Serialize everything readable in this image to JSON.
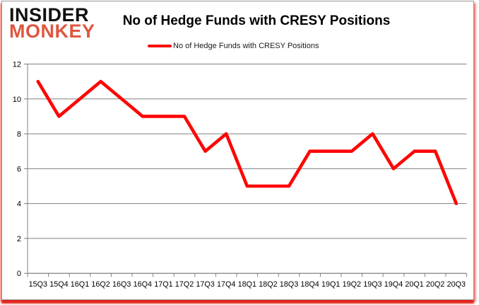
{
  "window": {
    "background": "#ffffff",
    "border_color": "#959595",
    "shadow_side_color": "#f2998f",
    "shadow_bottom_color": "#e01c12"
  },
  "logo": {
    "line1": "INSIDER",
    "line2": "MONKEY",
    "line1_color": "#111111",
    "line2_color": "#de5740"
  },
  "header": {
    "title": "No of Hedge Funds with CRESY Positions"
  },
  "legend": {
    "label": "No of Hedge Funds with CRESY Positions",
    "line_color": "#fe0606"
  },
  "chart_data": {
    "type": "line",
    "title": "No of Hedge Funds with CRESY Positions",
    "categories": [
      "15Q3",
      "15Q4",
      "16Q1",
      "16Q2",
      "16Q3",
      "16Q4",
      "17Q1",
      "17Q2",
      "17Q3",
      "17Q4",
      "18Q1",
      "18Q2",
      "18Q3",
      "18Q4",
      "19Q1",
      "19Q2",
      "19Q3",
      "19Q4",
      "20Q1",
      "20Q2",
      "20Q3"
    ],
    "series": [
      {
        "name": "No of Hedge Funds with CRESY Positions",
        "color": "#fe0606",
        "values": [
          11,
          9,
          10,
          11,
          10,
          9,
          9,
          9,
          7,
          8,
          5,
          5,
          5,
          7,
          7,
          7,
          8,
          6,
          7,
          7,
          4
        ]
      }
    ],
    "xlabel": "",
    "ylabel": "",
    "ylim": [
      0,
      12
    ],
    "yticks": [
      0,
      2,
      4,
      6,
      8,
      10,
      12
    ],
    "grid": true,
    "grid_color": "#808080",
    "axis_color": "#808080",
    "tick_label_color": "#000000",
    "legend_position": "top"
  }
}
